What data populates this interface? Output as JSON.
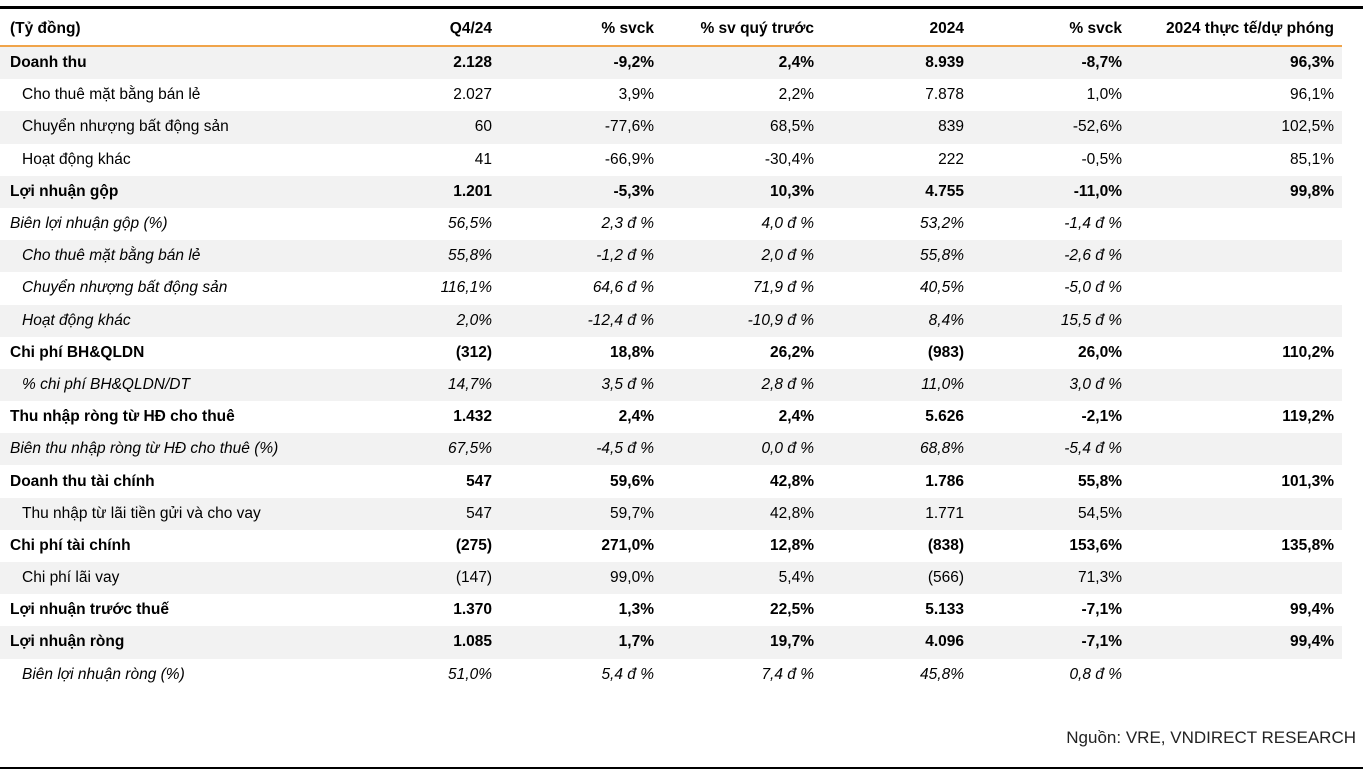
{
  "header": {
    "label": "(Tỷ đồng)",
    "cols": [
      "Q4/24",
      "% svck",
      "% sv quý trước",
      "2024",
      "% svck",
      "2024 thực tế/dự phóng"
    ]
  },
  "rows": [
    {
      "label": "Doanh thu",
      "v": [
        "2.128",
        "-9,2%",
        "2,4%",
        "8.939",
        "-8,7%",
        "96,3%"
      ]
    },
    {
      "label": "Cho thuê mặt bằng bán lẻ",
      "v": [
        "2.027",
        "3,9%",
        "2,2%",
        "7.878",
        "1,0%",
        "96,1%"
      ]
    },
    {
      "label": "Chuyển nhượng bất động sản",
      "v": [
        "60",
        "-77,6%",
        "68,5%",
        "839",
        "-52,6%",
        "102,5%"
      ]
    },
    {
      "label": "Hoạt động khác",
      "v": [
        "41",
        "-66,9%",
        "-30,4%",
        "222",
        "-0,5%",
        "85,1%"
      ]
    },
    {
      "label": "Lợi nhuận gộp",
      "v": [
        "1.201",
        "-5,3%",
        "10,3%",
        "4.755",
        "-11,0%",
        "99,8%"
      ]
    },
    {
      "label": "Biên lợi nhuận gộp (%)",
      "v": [
        "56,5%",
        "2,3 đ %",
        "4,0 đ %",
        "53,2%",
        "-1,4 đ %",
        ""
      ]
    },
    {
      "label": "Cho thuê mặt bằng bán lẻ",
      "v": [
        "55,8%",
        "-1,2 đ %",
        "2,0 đ %",
        "55,8%",
        "-2,6 đ %",
        ""
      ]
    },
    {
      "label": "Chuyển nhượng bất động sản",
      "v": [
        "116,1%",
        "64,6 đ %",
        "71,9 đ %",
        "40,5%",
        "-5,0 đ %",
        ""
      ]
    },
    {
      "label": "Hoạt động khác",
      "v": [
        "2,0%",
        "-12,4 đ %",
        "-10,9 đ %",
        "8,4%",
        "15,5 đ %",
        ""
      ]
    },
    {
      "label": "Chi phí BH&QLDN",
      "v": [
        "(312)",
        "18,8%",
        "26,2%",
        "(983)",
        "26,0%",
        "110,2%"
      ]
    },
    {
      "label": "% chi phí BH&QLDN/DT",
      "v": [
        "14,7%",
        "3,5 đ %",
        "2,8 đ %",
        "11,0%",
        "3,0 đ %",
        ""
      ]
    },
    {
      "label": "Thu nhập ròng từ HĐ cho thuê",
      "v": [
        "1.432",
        "2,4%",
        "2,4%",
        "5.626",
        "-2,1%",
        "119,2%"
      ]
    },
    {
      "label": "Biên thu nhập ròng từ HĐ cho thuê (%)",
      "v": [
        "67,5%",
        "-4,5 đ %",
        "0,0 đ %",
        "68,8%",
        "-5,4 đ %",
        ""
      ]
    },
    {
      "label": "Doanh thu tài chính",
      "v": [
        "547",
        "59,6%",
        "42,8%",
        "1.786",
        "55,8%",
        "101,3%"
      ]
    },
    {
      "label": "Thu nhập từ lãi tiền gửi và cho vay",
      "v": [
        "547",
        "59,7%",
        "42,8%",
        "1.771",
        "54,5%",
        ""
      ]
    },
    {
      "label": "Chi phí tài chính",
      "v": [
        "(275)",
        "271,0%",
        "12,8%",
        "(838)",
        "153,6%",
        "135,8%"
      ]
    },
    {
      "label": "Chi phí lãi vay",
      "v": [
        "(147)",
        "99,0%",
        "5,4%",
        "(566)",
        "71,3%",
        ""
      ]
    },
    {
      "label": "Lợi nhuận trước thuế",
      "v": [
        "1.370",
        "1,3%",
        "22,5%",
        "5.133",
        "-7,1%",
        "99,4%"
      ]
    },
    {
      "label": "Lợi nhuận ròng",
      "v": [
        "1.085",
        "1,7%",
        "19,7%",
        "4.096",
        "-7,1%",
        "99,4%"
      ]
    },
    {
      "label": "Biên lợi nhuận ròng (%)",
      "v": [
        "51,0%",
        "5,4 đ %",
        "7,4 đ %",
        "45,8%",
        "0,8 đ %",
        ""
      ]
    }
  ],
  "source": "Nguồn: VRE, VNDIRECT RESEARCH"
}
